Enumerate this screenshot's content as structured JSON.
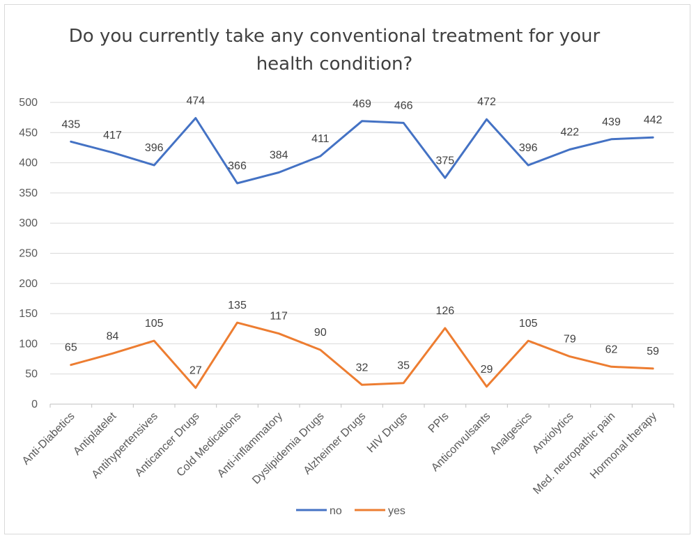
{
  "chart_data": {
    "type": "line",
    "title_lines": [
      "Do you currently take any conventional treatment for your",
      "health condition?"
    ],
    "xlabel": "",
    "ylabel": "",
    "ylim": [
      0,
      500
    ],
    "ytick_step": 50,
    "grid": true,
    "legend_position": "bottom",
    "categories": [
      "Anti-Diabetics",
      "Antiplatelet",
      "Antihypertensives",
      "Anticancer Drugs",
      "Cold Medications",
      "Anti-inflammatory",
      "Dyslipidemia Drugs",
      "Alzheimer Drugs",
      "HIV Drugs",
      "PPIs",
      "Anticonvulsants",
      "Analgesics",
      "Anxiolytics",
      "Med. neuropathic pain",
      "Hormonal therapy"
    ],
    "series": [
      {
        "name": "no",
        "color": "#4472c4",
        "values": [
          435,
          417,
          396,
          474,
          366,
          384,
          411,
          469,
          466,
          375,
          472,
          396,
          422,
          439,
          442
        ]
      },
      {
        "name": "yes",
        "color": "#ed7d31",
        "values": [
          65,
          84,
          105,
          27,
          135,
          117,
          90,
          32,
          35,
          126,
          29,
          105,
          79,
          62,
          59
        ]
      }
    ]
  }
}
